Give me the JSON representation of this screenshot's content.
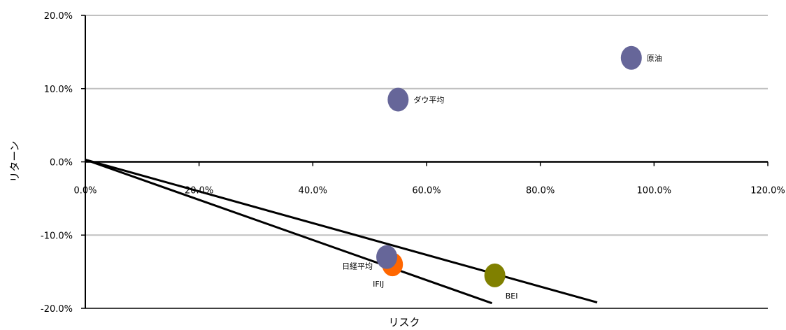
{
  "chart_data": {
    "type": "scatter",
    "xlabel": "リスク",
    "ylabel": "リターン",
    "xlim": [
      0,
      120
    ],
    "ylim": [
      -20,
      20
    ],
    "x_ticks": [
      0,
      20,
      40,
      60,
      80,
      100,
      120
    ],
    "y_ticks": [
      -20,
      -10,
      0,
      10,
      20
    ],
    "x_tick_labels": [
      "0.0%",
      "20.0%",
      "40.0%",
      "60.0%",
      "80.0%",
      "100.0%",
      "120.0%"
    ],
    "y_tick_labels": [
      "-20.0%",
      "-10.0%",
      "0.0%",
      "10.0%",
      "20.0%"
    ],
    "grid": true,
    "points": [
      {
        "label": "原油",
        "x": 96.0,
        "y": 14.2,
        "color": "#666699"
      },
      {
        "label": "ダウ平均",
        "x": 55.0,
        "y": 8.5,
        "color": "#666699"
      },
      {
        "label": "IFIJ",
        "x": 54.0,
        "y": -14.0,
        "color": "#ff6600"
      },
      {
        "label": "日経平均",
        "x": 53.0,
        "y": -13.0,
        "color": "#666699"
      },
      {
        "label": "BEI",
        "x": 72.0,
        "y": -15.5,
        "color": "#808000"
      }
    ],
    "lines": [
      {
        "points": [
          [
            0,
            0.3
          ],
          [
            71.5,
            -19.3
          ]
        ]
      },
      {
        "points": [
          [
            0,
            0.3
          ],
          [
            90,
            -19.2
          ]
        ]
      }
    ]
  }
}
